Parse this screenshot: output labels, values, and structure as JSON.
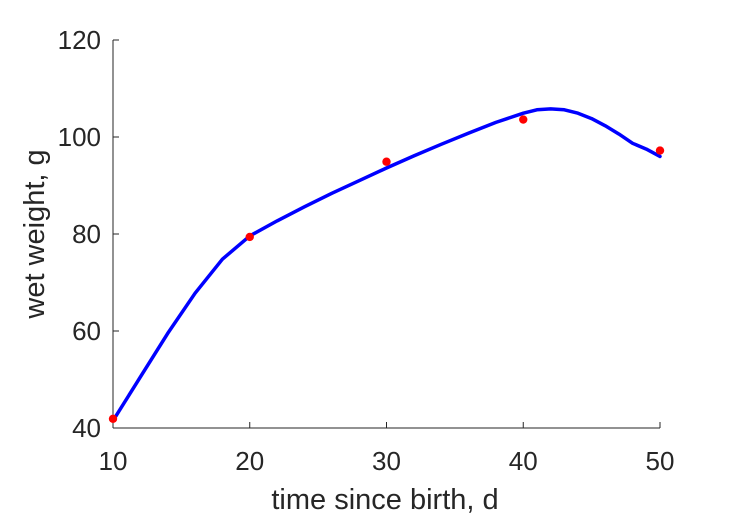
{
  "chart_data": {
    "type": "line",
    "title": "",
    "xlabel": "time since birth, d",
    "ylabel": "wet weight, g",
    "xlim": [
      10,
      50
    ],
    "ylim": [
      40,
      120
    ],
    "xticks": [
      10,
      20,
      30,
      40,
      50
    ],
    "yticks": [
      40,
      60,
      80,
      100,
      120
    ],
    "grid": false,
    "legend": "none",
    "series": [
      {
        "kind": "line",
        "color": "#0000ff",
        "x": [
          10,
          12,
          14,
          16,
          18,
          20,
          22,
          24,
          26,
          28,
          30,
          32,
          34,
          36,
          38,
          40,
          41,
          42,
          43,
          44,
          45,
          46,
          47,
          48,
          49,
          50
        ],
        "y": [
          41.5,
          50.5,
          59.5,
          67.8,
          74.8,
          79.6,
          82.7,
          85.6,
          88.4,
          91.0,
          93.6,
          96.1,
          98.5,
          100.8,
          103.0,
          104.9,
          105.6,
          105.8,
          105.6,
          104.9,
          103.8,
          102.3,
          100.6,
          98.7,
          97.5,
          96.0
        ]
      },
      {
        "kind": "scatter",
        "color": "#ff0000",
        "x": [
          10,
          20,
          30,
          40,
          50
        ],
        "y": [
          41.9,
          79.4,
          94.9,
          103.6,
          97.2
        ]
      }
    ]
  }
}
